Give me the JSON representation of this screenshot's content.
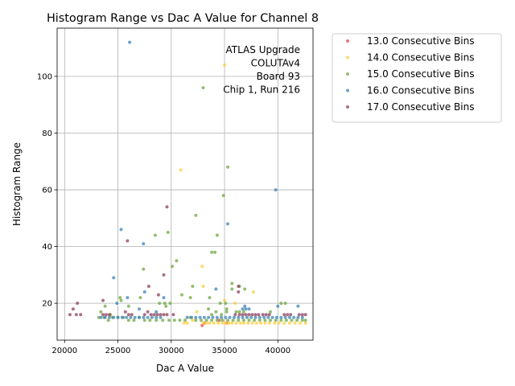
{
  "chart_data": {
    "type": "scatter",
    "title": "Histogram Range vs Dac A Value for Channel 8",
    "xlabel": "Dac A Value",
    "ylabel": "Histogram Range",
    "xlim": [
      19300,
      43300
    ],
    "ylim": [
      7,
      117
    ],
    "xticks": [
      20000,
      25000,
      30000,
      35000,
      40000
    ],
    "yticks": [
      20,
      40,
      60,
      80,
      100
    ],
    "grid": true,
    "legend_position": "outside-right",
    "annotation": [
      "ATLAS Upgrade",
      "COLUTAv4",
      "Board 93",
      "Chip 1, Run 216"
    ],
    "series": [
      {
        "name": "13.0 Consecutive Bins",
        "color": "#e8474b",
        "points": [
          [
            32900,
            12.2
          ],
          [
            33100,
            13
          ],
          [
            34500,
            14
          ],
          [
            35200,
            13
          ]
        ]
      },
      {
        "name": "14.0 Consecutive Bins",
        "color": "#ffcd3a",
        "points": [
          [
            30900,
            67
          ],
          [
            32900,
            33
          ],
          [
            33000,
            26
          ],
          [
            35000,
            104
          ],
          [
            35000,
            21
          ],
          [
            36000,
            20
          ],
          [
            37700,
            24
          ],
          [
            31200,
            13
          ],
          [
            31500,
            13
          ],
          [
            32000,
            14
          ],
          [
            32400,
            17
          ],
          [
            33000,
            13
          ],
          [
            33300,
            13
          ],
          [
            33600,
            13
          ],
          [
            34000,
            13
          ],
          [
            34400,
            13
          ],
          [
            34800,
            13
          ],
          [
            35100,
            13
          ],
          [
            35400,
            13
          ],
          [
            35700,
            13
          ],
          [
            36100,
            13
          ],
          [
            36500,
            13
          ],
          [
            36800,
            13
          ],
          [
            37200,
            13
          ],
          [
            37600,
            13
          ],
          [
            38000,
            13
          ],
          [
            38400,
            13
          ],
          [
            38800,
            13
          ],
          [
            39200,
            13
          ],
          [
            39700,
            13
          ],
          [
            40100,
            13
          ],
          [
            40600,
            13
          ],
          [
            41100,
            13
          ],
          [
            41600,
            13
          ],
          [
            42100,
            13
          ],
          [
            42600,
            13
          ]
        ]
      },
      {
        "name": "15.0 Consecutive Bins",
        "color": "#6fa843",
        "points": [
          [
            33000,
            96
          ],
          [
            35300,
            68
          ],
          [
            34900,
            58
          ],
          [
            32300,
            51
          ],
          [
            29700,
            45
          ],
          [
            28500,
            44
          ],
          [
            34300,
            44
          ],
          [
            33800,
            38
          ],
          [
            34100,
            38
          ],
          [
            30500,
            35
          ],
          [
            30100,
            33
          ],
          [
            27400,
            32
          ],
          [
            35700,
            27
          ],
          [
            36400,
            26
          ],
          [
            36900,
            25
          ],
          [
            35700,
            25
          ],
          [
            32000,
            26
          ],
          [
            33600,
            22
          ],
          [
            31800,
            22
          ],
          [
            31000,
            23
          ],
          [
            28900,
            20
          ],
          [
            29400,
            20
          ],
          [
            29500,
            19
          ],
          [
            29900,
            20
          ],
          [
            25300,
            21
          ],
          [
            25200,
            22
          ],
          [
            27100,
            22
          ],
          [
            23800,
            19
          ],
          [
            26000,
            19
          ],
          [
            33500,
            18
          ],
          [
            34600,
            20
          ],
          [
            35100,
            20
          ],
          [
            35200,
            18
          ],
          [
            36100,
            17
          ],
          [
            36400,
            17
          ],
          [
            36800,
            17
          ],
          [
            39300,
            17
          ],
          [
            40300,
            20
          ],
          [
            40700,
            20
          ],
          [
            33800,
            16
          ],
          [
            34200,
            17
          ],
          [
            34700,
            16
          ],
          [
            35200,
            17
          ],
          [
            23400,
            17
          ],
          [
            24300,
            16
          ],
          [
            23200,
            15
          ],
          [
            23700,
            15
          ],
          [
            24100,
            14
          ],
          [
            24500,
            15
          ],
          [
            25000,
            15
          ],
          [
            25500,
            15
          ],
          [
            26000,
            14
          ],
          [
            26500,
            14
          ],
          [
            27000,
            15
          ],
          [
            27500,
            14
          ],
          [
            28000,
            14
          ],
          [
            28600,
            14
          ],
          [
            29200,
            14
          ],
          [
            29800,
            14
          ],
          [
            30300,
            14
          ],
          [
            30800,
            14
          ],
          [
            31300,
            14
          ],
          [
            31800,
            15
          ],
          [
            32300,
            14
          ],
          [
            32800,
            14
          ],
          [
            33300,
            14
          ],
          [
            33800,
            14
          ],
          [
            34300,
            14
          ],
          [
            34800,
            14
          ],
          [
            35300,
            14
          ],
          [
            35800,
            14
          ],
          [
            36300,
            14
          ],
          [
            36800,
            14
          ],
          [
            37300,
            14
          ],
          [
            37800,
            14
          ],
          [
            38300,
            14
          ],
          [
            38800,
            14
          ],
          [
            39300,
            14
          ],
          [
            39800,
            14
          ],
          [
            40300,
            14
          ],
          [
            40800,
            14
          ],
          [
            41300,
            14
          ],
          [
            41800,
            14
          ],
          [
            42300,
            14
          ],
          [
            42600,
            14
          ]
        ]
      },
      {
        "name": "16.0 Consecutive Bins",
        "color": "#3e83b5",
        "points": [
          [
            26100,
            112
          ],
          [
            39800,
            60
          ],
          [
            35300,
            48
          ],
          [
            25300,
            46
          ],
          [
            27400,
            41
          ],
          [
            24600,
            29
          ],
          [
            34200,
            25
          ],
          [
            27500,
            24
          ],
          [
            25900,
            22
          ],
          [
            29300,
            22
          ],
          [
            24900,
            20
          ],
          [
            36900,
            19
          ],
          [
            36700,
            18
          ],
          [
            37300,
            18
          ],
          [
            37000,
            18
          ],
          [
            40000,
            19
          ],
          [
            41900,
            19
          ],
          [
            27000,
            18
          ],
          [
            28600,
            17
          ],
          [
            23400,
            15
          ],
          [
            23800,
            15
          ],
          [
            24200,
            15
          ],
          [
            24600,
            15
          ],
          [
            25000,
            15
          ],
          [
            25400,
            15
          ],
          [
            25800,
            15
          ],
          [
            26200,
            15
          ],
          [
            26600,
            15
          ],
          [
            27000,
            15
          ],
          [
            27400,
            15
          ],
          [
            27800,
            15
          ],
          [
            28200,
            15
          ],
          [
            28600,
            15
          ],
          [
            29000,
            15
          ],
          [
            31500,
            15
          ],
          [
            31900,
            15
          ],
          [
            32300,
            15
          ],
          [
            32700,
            15
          ],
          [
            33100,
            15
          ],
          [
            33500,
            15
          ],
          [
            33900,
            15
          ],
          [
            34300,
            15
          ],
          [
            34700,
            15
          ],
          [
            35100,
            15
          ],
          [
            35500,
            15
          ],
          [
            35900,
            15
          ],
          [
            36300,
            15
          ],
          [
            36700,
            15
          ],
          [
            37100,
            15
          ],
          [
            37500,
            15
          ],
          [
            37900,
            15
          ],
          [
            38300,
            15
          ],
          [
            38700,
            15
          ],
          [
            39100,
            15
          ],
          [
            39500,
            15
          ],
          [
            39900,
            15
          ],
          [
            40300,
            15
          ],
          [
            40700,
            15
          ],
          [
            41100,
            15
          ],
          [
            41500,
            15
          ],
          [
            41900,
            15
          ],
          [
            42300,
            15
          ]
        ]
      },
      {
        "name": "17.0 Consecutive Bins",
        "color": "#8d3f5e",
        "points": [
          [
            29600,
            54
          ],
          [
            25900,
            42
          ],
          [
            29300,
            30
          ],
          [
            27900,
            26
          ],
          [
            28800,
            23
          ],
          [
            36300,
            26
          ],
          [
            36300,
            24
          ],
          [
            23600,
            21
          ],
          [
            21200,
            20
          ],
          [
            20800,
            18
          ],
          [
            20500,
            16
          ],
          [
            21100,
            16
          ],
          [
            21500,
            16
          ],
          [
            23600,
            16
          ],
          [
            23900,
            16
          ],
          [
            24200,
            16
          ],
          [
            25700,
            17
          ],
          [
            26000,
            16
          ],
          [
            26300,
            16
          ],
          [
            27500,
            16
          ],
          [
            27800,
            17
          ],
          [
            28100,
            16
          ],
          [
            28400,
            16
          ],
          [
            28700,
            16
          ],
          [
            29000,
            16
          ],
          [
            29300,
            16
          ],
          [
            29600,
            16
          ],
          [
            30200,
            16
          ],
          [
            36000,
            16
          ],
          [
            36400,
            16
          ],
          [
            36700,
            16
          ],
          [
            37000,
            16
          ],
          [
            37300,
            16
          ],
          [
            37600,
            16
          ],
          [
            37900,
            16
          ],
          [
            38200,
            16
          ],
          [
            38600,
            16
          ],
          [
            38900,
            16
          ],
          [
            39200,
            16
          ],
          [
            40600,
            16
          ],
          [
            40900,
            16
          ],
          [
            41200,
            16
          ],
          [
            42000,
            16
          ],
          [
            42300,
            16
          ],
          [
            42600,
            16
          ]
        ]
      }
    ]
  }
}
